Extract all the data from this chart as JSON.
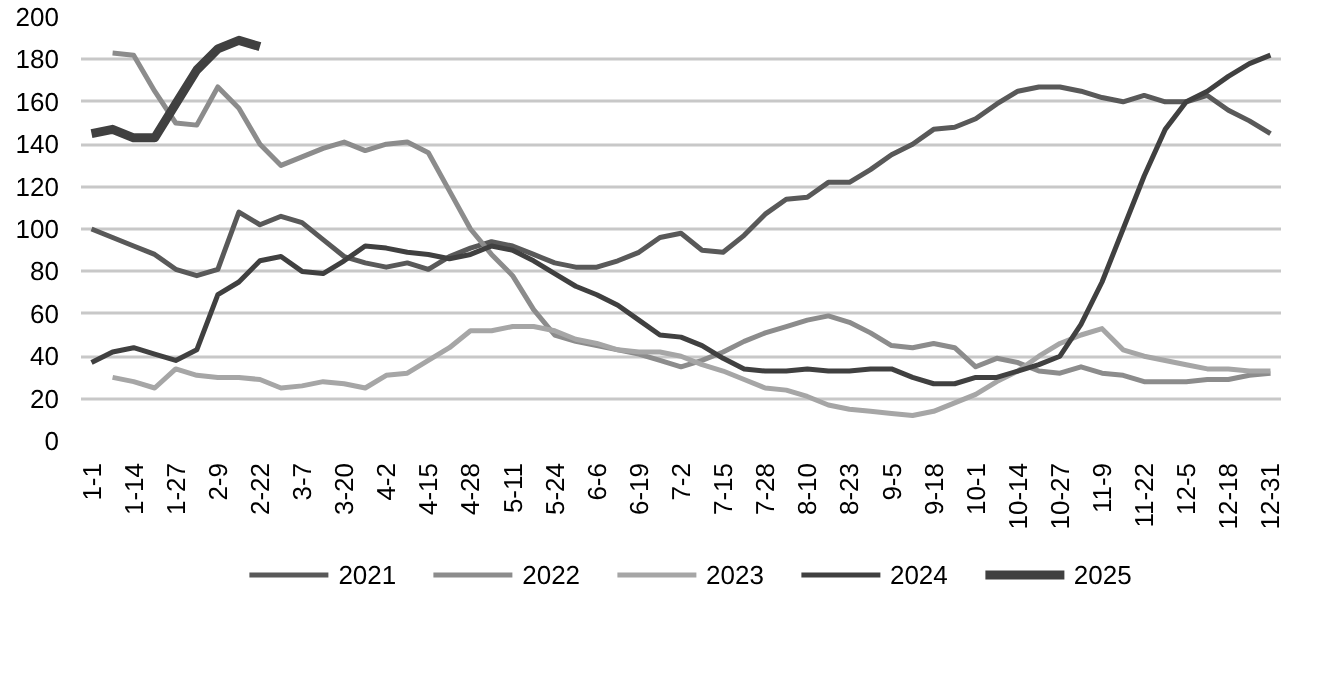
{
  "chart_data": {
    "type": "line",
    "categories": [
      "1-1",
      null,
      "1-14",
      null,
      "1-27",
      null,
      "2-9",
      null,
      "2-22",
      null,
      "3-7",
      null,
      "3-20",
      null,
      "4-2",
      null,
      "4-15",
      null,
      "4-28",
      null,
      "5-11",
      null,
      "5-24",
      null,
      "6-6",
      null,
      "6-19",
      null,
      "7-2",
      null,
      "7-15",
      null,
      "7-28",
      null,
      "8-10",
      null,
      "8-23",
      null,
      "9-5",
      null,
      "9-18",
      null,
      "10-1",
      null,
      "10-14",
      null,
      "10-27",
      null,
      "11-9",
      null,
      "11-22",
      null,
      "12-5",
      null,
      "12-18",
      null,
      "12-31"
    ],
    "ylim": [
      0,
      200
    ],
    "yticks": [
      0,
      20,
      40,
      60,
      80,
      100,
      120,
      140,
      160,
      180,
      200
    ],
    "grid": "y",
    "legend": "bottom",
    "line_style": "solid",
    "series": [
      {
        "name": "2021",
        "color": "#595959",
        "values": [
          100,
          96,
          92,
          88,
          81,
          78,
          81,
          108,
          102,
          106,
          103,
          95,
          87,
          84,
          82,
          84,
          81,
          87,
          91,
          94,
          92,
          88,
          84,
          82,
          82,
          85,
          89,
          96,
          98,
          90,
          89,
          97,
          107,
          114,
          115,
          122,
          122,
          128,
          135,
          140,
          147,
          148,
          152,
          159,
          165,
          167,
          167,
          165,
          162,
          160,
          163,
          160,
          160,
          163,
          156,
          151,
          145
        ]
      },
      {
        "name": "2022",
        "color": "#8c8c8c",
        "values": [
          null,
          183,
          182,
          165,
          150,
          149,
          167,
          157,
          140,
          130,
          134,
          138,
          141,
          137,
          140,
          141,
          136,
          118,
          100,
          88,
          78,
          62,
          50,
          47,
          45,
          43,
          41,
          38,
          35,
          38,
          42,
          47,
          51,
          54,
          57,
          59,
          56,
          51,
          45,
          44,
          46,
          44,
          35,
          39,
          37,
          33,
          32,
          35,
          32,
          31,
          28,
          28,
          28,
          29,
          29,
          31,
          32
        ]
      },
      {
        "name": "2023",
        "color": "#a6a6a6",
        "values": [
          null,
          30,
          28,
          25,
          34,
          31,
          30,
          30,
          29,
          25,
          26,
          28,
          27,
          25,
          31,
          32,
          38,
          44,
          52,
          52,
          54,
          54,
          52,
          48,
          46,
          43,
          42,
          42,
          40,
          36,
          33,
          29,
          25,
          24,
          21,
          17,
          15,
          14,
          13,
          12,
          14,
          18,
          22,
          28,
          33,
          40,
          46,
          50,
          53,
          43,
          40,
          38,
          36,
          34,
          34,
          33,
          33
        ]
      },
      {
        "name": "2024",
        "color": "#404040",
        "values": [
          37,
          42,
          44,
          41,
          38,
          43,
          69,
          75,
          85,
          87,
          80,
          79,
          85,
          92,
          91,
          89,
          88,
          86,
          88,
          92,
          90,
          85,
          79,
          73,
          69,
          64,
          57,
          50,
          49,
          45,
          39,
          34,
          33,
          33,
          34,
          33,
          33,
          34,
          34,
          30,
          27,
          27,
          30,
          30,
          33,
          36,
          40,
          55,
          75,
          100,
          125,
          147,
          160,
          165,
          172,
          178,
          182
        ]
      },
      {
        "name": "2025",
        "color": "#404040",
        "values": [
          145,
          147,
          143,
          143,
          159,
          175,
          185,
          189,
          186,
          null,
          null,
          null,
          null,
          null,
          null,
          null,
          null,
          null,
          null,
          null,
          null,
          null,
          null,
          null,
          null,
          null,
          null,
          null,
          null,
          null,
          null,
          null,
          null,
          null,
          null,
          null,
          null,
          null,
          null,
          null,
          null,
          null,
          null,
          null,
          null,
          null,
          null,
          null,
          null,
          null,
          null,
          null,
          null,
          null,
          null,
          null,
          null
        ]
      }
    ]
  }
}
